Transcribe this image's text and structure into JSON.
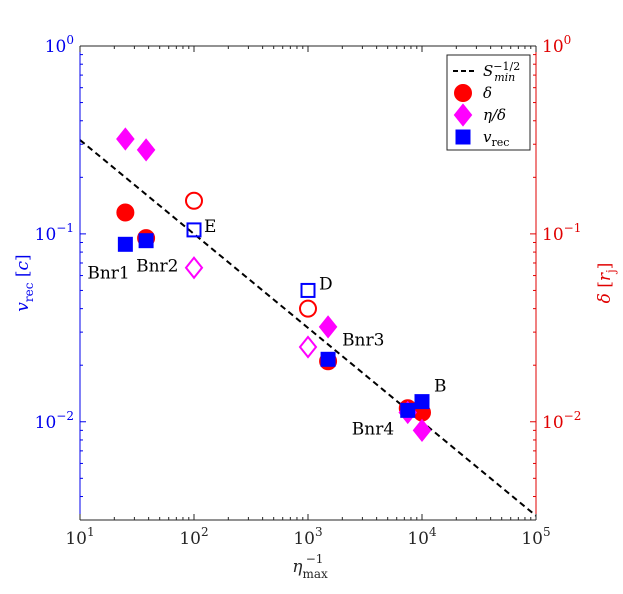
{
  "chart_data": {
    "type": "scatter",
    "x_scale": "log",
    "y_scale": "log",
    "xlim": [
      10,
      100000
    ],
    "ylim": [
      0.003,
      1
    ],
    "xlabel": "η_max^-1",
    "ylabel_left": "v_rec [c]",
    "ylabel_right": "δ [r_j]",
    "x_ticks": [
      {
        "value": 10,
        "base": "10",
        "exp": "1"
      },
      {
        "value": 100,
        "base": "10",
        "exp": "2"
      },
      {
        "value": 1000,
        "base": "10",
        "exp": "3"
      },
      {
        "value": 10000,
        "base": "10",
        "exp": "4"
      },
      {
        "value": 100000,
        "base": "10",
        "exp": "5"
      }
    ],
    "y_ticks": [
      {
        "value": 0.01,
        "base": "10",
        "exp": "−2"
      },
      {
        "value": 0.1,
        "base": "10",
        "exp": "−1"
      },
      {
        "value": 1,
        "base": "10",
        "exp": "0"
      }
    ],
    "colors": {
      "left_axis": "#0000ee",
      "right_axis": "#e00000",
      "delta": "#ff0000",
      "eta_delta": "#ff00ff",
      "vrec": "#0000ff",
      "fit": "#000000"
    },
    "legend": {
      "position": "top-right",
      "entries": [
        {
          "name": "fit",
          "label": "S_min^{-1/2}"
        },
        {
          "name": "delta",
          "label": "δ"
        },
        {
          "name": "eta-delta",
          "label": "η/δ"
        },
        {
          "name": "vrec",
          "label": "v_rec"
        }
      ]
    },
    "fit_line": {
      "label": "S_min^{-1/2}",
      "points": [
        [
          10,
          0.316
        ],
        [
          100000,
          0.00316
        ]
      ]
    },
    "series": [
      {
        "name": "delta",
        "marker": "circle",
        "points": [
          {
            "x": 25,
            "y": 0.13,
            "filled": true
          },
          {
            "x": 38,
            "y": 0.095,
            "filled": true
          },
          {
            "x": 100,
            "y": 0.15,
            "filled": false
          },
          {
            "x": 1000,
            "y": 0.04,
            "filled": false
          },
          {
            "x": 1500,
            "y": 0.021,
            "filled": true
          },
          {
            "x": 7500,
            "y": 0.0118,
            "filled": true
          },
          {
            "x": 10000,
            "y": 0.0112,
            "filled": true
          }
        ]
      },
      {
        "name": "eta-delta",
        "marker": "diamond",
        "points": [
          {
            "x": 25,
            "y": 0.32,
            "filled": true
          },
          {
            "x": 38,
            "y": 0.28,
            "filled": true
          },
          {
            "x": 100,
            "y": 0.066,
            "filled": false
          },
          {
            "x": 1000,
            "y": 0.025,
            "filled": false
          },
          {
            "x": 1500,
            "y": 0.032,
            "filled": true
          },
          {
            "x": 7500,
            "y": 0.0112,
            "filled": true
          },
          {
            "x": 10000,
            "y": 0.009,
            "filled": true
          }
        ]
      },
      {
        "name": "vrec",
        "marker": "square",
        "points": [
          {
            "x": 25,
            "y": 0.088,
            "filled": true
          },
          {
            "x": 38,
            "y": 0.092,
            "filled": true
          },
          {
            "x": 100,
            "y": 0.105,
            "filled": false
          },
          {
            "x": 1000,
            "y": 0.05,
            "filled": false
          },
          {
            "x": 1500,
            "y": 0.0215,
            "filled": true
          },
          {
            "x": 7500,
            "y": 0.0115,
            "filled": true
          },
          {
            "x": 10000,
            "y": 0.0128,
            "filled": true
          }
        ]
      }
    ],
    "annotations": [
      {
        "text": "Bnr1",
        "x": 25,
        "y": 0.088
      },
      {
        "text": "Bnr2",
        "x": 38,
        "y": 0.092
      },
      {
        "text": "E",
        "x": 100,
        "y": 0.105
      },
      {
        "text": "D",
        "x": 1000,
        "y": 0.05
      },
      {
        "text": "Bnr3",
        "x": 1500,
        "y": 0.0215
      },
      {
        "text": "Bnr4",
        "x": 7500,
        "y": 0.0115
      },
      {
        "text": "B",
        "x": 10000,
        "y": 0.0128
      }
    ]
  }
}
